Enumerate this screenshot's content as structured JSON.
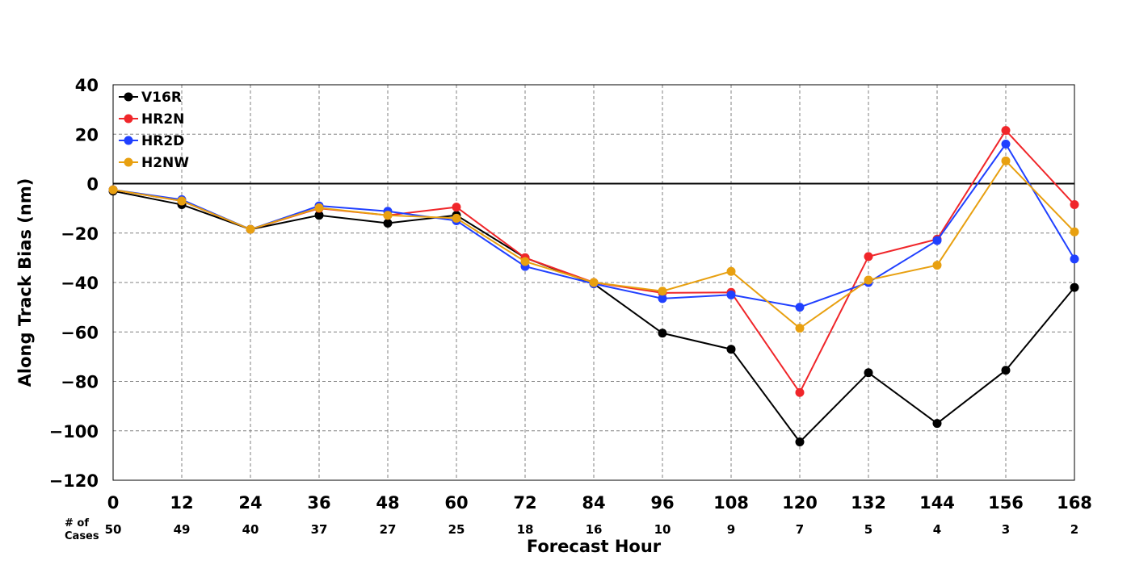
{
  "chart_data": {
    "type": "line",
    "title": "",
    "xlabel": "Forecast Hour",
    "ylabel": "Along Track Bias (nm)",
    "x": [
      0,
      12,
      24,
      36,
      48,
      60,
      72,
      84,
      96,
      108,
      120,
      132,
      144,
      156,
      168
    ],
    "x_ticks": [
      "0",
      "12",
      "24",
      "36",
      "48",
      "60",
      "72",
      "84",
      "96",
      "108",
      "120",
      "132",
      "144",
      "156",
      "168"
    ],
    "xlim": [
      0,
      168
    ],
    "ylim": [
      -120,
      40
    ],
    "y_ticks": [
      40,
      20,
      0,
      -20,
      -40,
      -60,
      -80,
      -100,
      -120
    ],
    "y_tick_labels": [
      "40",
      "20",
      "0",
      "−20",
      "−40",
      "−60",
      "−80",
      "−100",
      "−120"
    ],
    "grid": true,
    "zero_line": true,
    "legend_position": "top-left",
    "cases_label": [
      "# of",
      "Cases"
    ],
    "num_cases": [
      "50",
      "49",
      "40",
      "37",
      "27",
      "25",
      "18",
      "16",
      "10",
      "9",
      "7",
      "5",
      "4",
      "3",
      "2"
    ],
    "series": [
      {
        "name": "V16R",
        "color": "#000000",
        "values": [
          -3,
          -8.5,
          -18.5,
          -12.8,
          -16,
          -12.8,
          -30,
          -40.5,
          -60.5,
          -67,
          -104.5,
          -76.5,
          -97,
          -75.5,
          -42
        ]
      },
      {
        "name": "HR2N",
        "color": "#f0262a",
        "values": [
          -2.5,
          -7,
          -18.5,
          -10,
          -12.8,
          -9.5,
          -30,
          -40,
          -44.2,
          -44,
          -84.5,
          -29.5,
          -22.5,
          21.5,
          -8.5
        ]
      },
      {
        "name": "HR2D",
        "color": "#2040ff",
        "values": [
          -2.5,
          -6.5,
          -18.5,
          -9,
          -11.2,
          -15,
          -33.5,
          -40.5,
          -46.5,
          -45,
          -50,
          -40,
          -23,
          16,
          -30.5
        ]
      },
      {
        "name": "H2NW",
        "color": "#e8a010",
        "values": [
          -2.5,
          -7,
          -18.5,
          -9.8,
          -12.8,
          -14,
          -31.5,
          -40,
          -43.5,
          -35.5,
          -58.5,
          -39,
          -33,
          9.2,
          -19.5
        ]
      }
    ]
  }
}
